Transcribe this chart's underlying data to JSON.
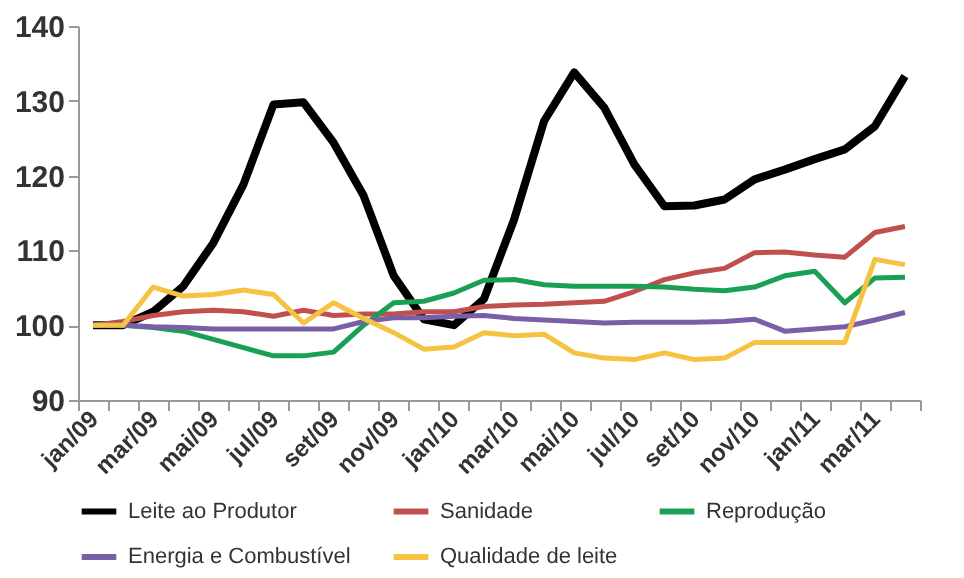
{
  "chart_data": {
    "type": "line",
    "categories": [
      "jan/09",
      null,
      "mar/09",
      null,
      "mai/09",
      null,
      "jul/09",
      null,
      "set/09",
      null,
      "nov/09",
      null,
      "jan/10",
      null,
      "mar/10",
      null,
      "mai/10",
      null,
      "jul/10",
      null,
      "set/10",
      null,
      "nov/10",
      null,
      "jan/11",
      null,
      "mar/11",
      null
    ],
    "series": [
      {
        "name": "Leite ao Produtor",
        "color": "#000000",
        "values": [
          100,
          100,
          101.8,
          105.2,
          111,
          118.8,
          129.5,
          129.8,
          124.4,
          117.3,
          106.6,
          100.8,
          100,
          103.5,
          114.1,
          127.3,
          133.8,
          129.1,
          121.5,
          115.9,
          116,
          116.8,
          119.5,
          120.8,
          122.2,
          123.5,
          126.6,
          133.3
        ]
      },
      {
        "name": "Sanidade",
        "color": "#c0504d",
        "values": [
          100,
          100.5,
          101.3,
          101.8,
          102,
          101.8,
          101.2,
          102,
          101.3,
          101.5,
          101.5,
          101.8,
          101.8,
          102.5,
          102.7,
          102.8,
          103,
          103.2,
          104.5,
          106.1,
          107,
          107.6,
          109.7,
          109.8,
          109.4,
          109.1,
          112.4,
          113.2
        ]
      },
      {
        "name": "Reprodução",
        "color": "#1aa055",
        "values": [
          100,
          100,
          99.7,
          99.2,
          98.1,
          97,
          95.9,
          95.9,
          96.4,
          100,
          103,
          103.2,
          104.3,
          106,
          106.1,
          105.4,
          105.2,
          105.2,
          105.2,
          105.1,
          104.8,
          104.6,
          105.1,
          106.6,
          107.2,
          103,
          106.3,
          106.4
        ]
      },
      {
        "name": "Energia e Combustível",
        "color": "#7b5fa6",
        "values": [
          100,
          100,
          99.8,
          99.7,
          99.5,
          99.5,
          99.5,
          99.5,
          99.5,
          100.5,
          101,
          101,
          101.2,
          101.3,
          100.9,
          100.7,
          100.5,
          100.3,
          100.4,
          100.4,
          100.4,
          100.5,
          100.8,
          99.2,
          99.5,
          99.8,
          100.7,
          101.7
        ]
      },
      {
        "name": "Qualidade de leite",
        "color": "#f5c242",
        "values": [
          100,
          100,
          105.1,
          103.9,
          104.1,
          104.7,
          104.1,
          100.3,
          103,
          100.9,
          99,
          96.8,
          97.1,
          99,
          98.6,
          98.8,
          96.3,
          95.6,
          95.4,
          96.3,
          95.4,
          95.6,
          97.7,
          97.7,
          97.7,
          97.7,
          108.8,
          108.1
        ]
      }
    ],
    "ylim": [
      90,
      140
    ],
    "yticks": [
      90,
      100,
      110,
      120,
      130,
      140
    ],
    "grid": false,
    "legend": "bottom",
    "marker": "none",
    "line_style": "solid"
  }
}
